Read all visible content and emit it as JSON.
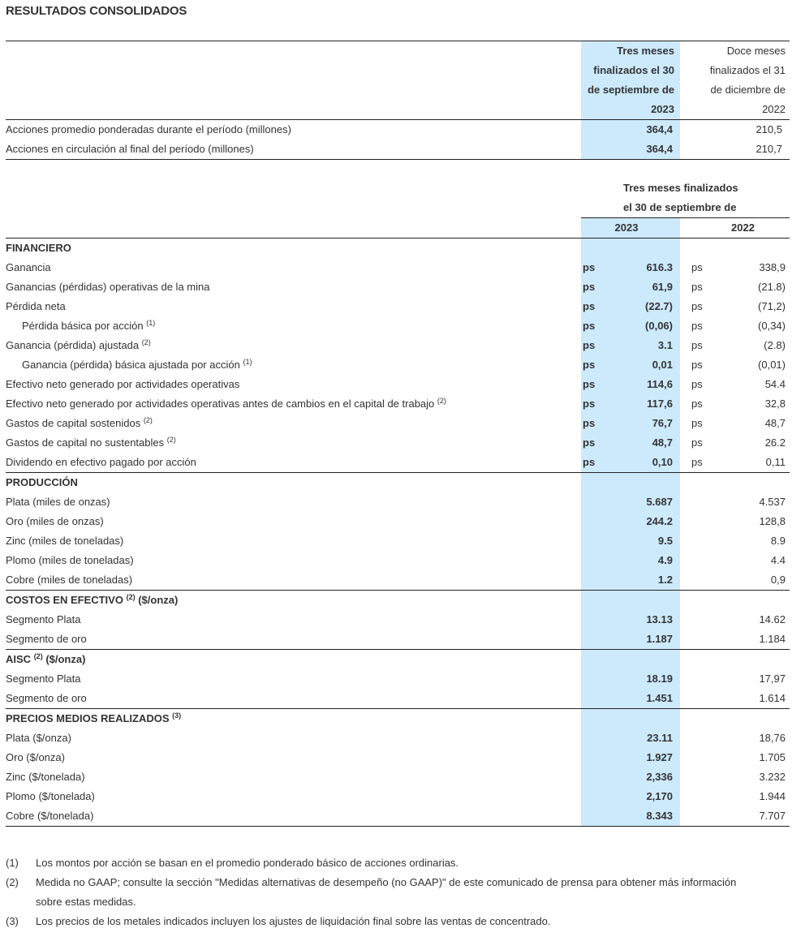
{
  "title": "RESULTADOS CONSOLIDADOS",
  "table1": {
    "header_2023": [
      "Tres meses",
      "finalizados el 30",
      "de septiembre de",
      "2023"
    ],
    "header_2022": [
      "Doce meses",
      "finalizados el 31",
      "de diciembre de",
      "2022"
    ],
    "rows": [
      {
        "label": "Acciones promedio ponderadas durante el período (millones)",
        "v2023": "364,4",
        "v2022": "210,5"
      },
      {
        "label": "Acciones en circulación al final del período (millones)",
        "v2023": "364,4",
        "v2022": "210,7"
      }
    ]
  },
  "table2": {
    "header": [
      "Tres meses finalizados",
      "el 30 de septiembre de"
    ],
    "year_2023": "2023",
    "year_2022": "2022",
    "currency": "ps",
    "sections": [
      {
        "title": "FINANCIERO",
        "sup": "",
        "unit": "",
        "rows": [
          {
            "label": "Ganancia",
            "sup": "",
            "indent": false,
            "ps": true,
            "v2023": "616.3",
            "v2022": "338,9"
          },
          {
            "label": "Ganancias (pérdidas) operativas de la mina",
            "sup": "",
            "indent": false,
            "ps": true,
            "v2023": "61,9",
            "v2022": "(21.8)"
          },
          {
            "label": "Pérdida neta",
            "sup": "",
            "indent": false,
            "ps": true,
            "v2023": "(22.7)",
            "v2022": "(71,2)"
          },
          {
            "label": "Pérdida básica por acción",
            "sup": "(1)",
            "indent": true,
            "ps": true,
            "v2023": "(0,06)",
            "v2022": "(0,34)"
          },
          {
            "label": "Ganancia (pérdida) ajustada",
            "sup": "(2)",
            "indent": false,
            "ps": true,
            "v2023": "3.1",
            "v2022": "(2.8)"
          },
          {
            "label": "Ganancia (pérdida) básica ajustada por acción",
            "sup": "(1)",
            "indent": true,
            "ps": true,
            "v2023": "0,01",
            "v2022": "(0,01)"
          },
          {
            "label": "Efectivo neto generado por actividades operativas",
            "sup": "",
            "indent": false,
            "ps": true,
            "v2023": "114,6",
            "v2022": "54.4"
          },
          {
            "label": "Efectivo neto generado por actividades operativas antes de cambios en el capital de trabajo",
            "sup": "(2)",
            "indent": false,
            "ps": true,
            "v2023": "117,6",
            "v2022": "32,8"
          },
          {
            "label": "Gastos de capital sostenidos",
            "sup": "(2)",
            "indent": false,
            "ps": true,
            "v2023": "76,7",
            "v2022": "48,7"
          },
          {
            "label": "Gastos de capital no sustentables",
            "sup": "(2)",
            "indent": false,
            "ps": true,
            "v2023": "48,7",
            "v2022": "26.2"
          },
          {
            "label": "Dividendo en efectivo pagado por acción",
            "sup": "",
            "indent": false,
            "ps": true,
            "v2023": "0,10",
            "v2022": "0,11"
          }
        ]
      },
      {
        "title": "PRODUCCIÓN",
        "sup": "",
        "unit": "",
        "rows": [
          {
            "label": "Plata (miles de onzas)",
            "sup": "",
            "indent": false,
            "ps": false,
            "v2023": "5.687",
            "v2022": "4.537"
          },
          {
            "label": "Oro (miles de onzas)",
            "sup": "",
            "indent": false,
            "ps": false,
            "v2023": "244.2",
            "v2022": "128,8"
          },
          {
            "label": "Zinc (miles de toneladas)",
            "sup": "",
            "indent": false,
            "ps": false,
            "v2023": "9.5",
            "v2022": "8.9"
          },
          {
            "label": "Plomo (miles de toneladas)",
            "sup": "",
            "indent": false,
            "ps": false,
            "v2023": "4.9",
            "v2022": "4.4"
          },
          {
            "label": "Cobre (miles de toneladas)",
            "sup": "",
            "indent": false,
            "ps": false,
            "v2023": "1.2",
            "v2022": "0,9"
          }
        ]
      },
      {
        "title": "COSTOS EN EFECTIVO",
        "sup": "(2)",
        "unit": "($/onza)",
        "rows": [
          {
            "label": "Segmento Plata",
            "sup": "",
            "indent": false,
            "ps": false,
            "v2023": "13.13",
            "v2022": "14.62"
          },
          {
            "label": "Segmento de oro",
            "sup": "",
            "indent": false,
            "ps": false,
            "v2023": "1.187",
            "v2022": "1.184"
          }
        ]
      },
      {
        "title": "AISC",
        "sup": "(2)",
        "unit": "($/onza)",
        "rows": [
          {
            "label": "Segmento Plata",
            "sup": "",
            "indent": false,
            "ps": false,
            "v2023": "18.19",
            "v2022": "17,97"
          },
          {
            "label": "Segmento de oro",
            "sup": "",
            "indent": false,
            "ps": false,
            "v2023": "1.451",
            "v2022": "1.614"
          }
        ]
      },
      {
        "title": "PRECIOS MEDIOS REALIZADOS",
        "sup": "(3)",
        "unit": "",
        "rows": [
          {
            "label": "Plata ($/onza)",
            "sup": "",
            "indent": false,
            "ps": false,
            "v2023": "23.11",
            "v2022": "18,76"
          },
          {
            "label": "Oro ($/onza)",
            "sup": "",
            "indent": false,
            "ps": false,
            "v2023": "1.927",
            "v2022": "1.705"
          },
          {
            "label": "Zinc ($/tonelada)",
            "sup": "",
            "indent": false,
            "ps": false,
            "v2023": "2,336",
            "v2022": "3.232"
          },
          {
            "label": "Plomo ($/tonelada)",
            "sup": "",
            "indent": false,
            "ps": false,
            "v2023": "2,170",
            "v2022": "1.944"
          },
          {
            "label": "Cobre ($/tonelada)",
            "sup": "",
            "indent": false,
            "ps": false,
            "v2023": "8.343",
            "v2022": "7.707"
          }
        ]
      }
    ]
  },
  "footnotes": [
    {
      "num": "(1)",
      "lines": [
        "Los montos por acción se basan en el promedio ponderado básico de acciones ordinarias."
      ]
    },
    {
      "num": "(2)",
      "lines": [
        "Medida no GAAP; consulte la sección \"Medidas alternativas de desempeño (no GAAP)\" de este comunicado de prensa para obtener más información",
        "sobre estas medidas."
      ]
    },
    {
      "num": "(3)",
      "lines": [
        "Los precios de los metales indicados incluyen los ajustes de liquidación final sobre las ventas de concentrado."
      ]
    }
  ],
  "colors": {
    "highlight": "#cdeafd",
    "text": "#333333",
    "rule": "#222222"
  }
}
